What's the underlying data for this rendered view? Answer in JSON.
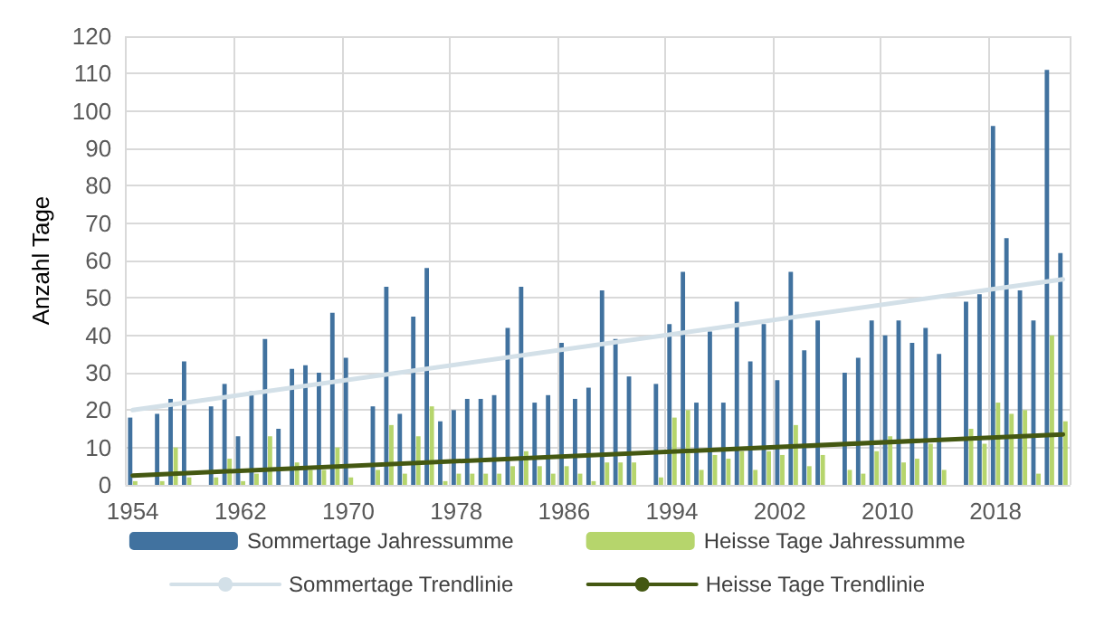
{
  "chart_data": {
    "type": "bar",
    "ylabel": "Anzahl Tage",
    "categories": [
      "1954",
      null,
      null,
      null,
      null,
      null,
      null,
      null,
      "1962",
      null,
      null,
      null,
      null,
      null,
      null,
      null,
      "1970",
      null,
      null,
      null,
      null,
      null,
      null,
      null,
      "1978",
      null,
      null,
      null,
      null,
      null,
      null,
      null,
      "1986",
      null,
      null,
      null,
      null,
      null,
      null,
      null,
      "1994",
      null,
      null,
      null,
      null,
      null,
      null,
      null,
      "2002",
      null,
      null,
      null,
      null,
      null,
      null,
      null,
      "2010",
      null,
      null,
      null,
      null,
      null,
      null,
      null,
      "2018",
      null,
      null,
      null,
      null,
      null
    ],
    "series": [
      {
        "name": "Sommertage Jahressumme",
        "color": "#41729f",
        "values": [
          18,
          null,
          19,
          23,
          33,
          null,
          21,
          27,
          13,
          25,
          39,
          15,
          31,
          32,
          30,
          46,
          34,
          null,
          21,
          53,
          19,
          45,
          58,
          17,
          20,
          23,
          23,
          24,
          42,
          53,
          22,
          24,
          38,
          23,
          26,
          52,
          39,
          29,
          null,
          27,
          43,
          57,
          22,
          41,
          22,
          49,
          33,
          43,
          28,
          57,
          36,
          44,
          null,
          30,
          34,
          44,
          40,
          44,
          38,
          42,
          35,
          null,
          49,
          51,
          96,
          66,
          52,
          44,
          111,
          62
        ]
      },
      {
        "name": "Heisse Tage Jahressumme",
        "color": "#b6d56c",
        "values": [
          1,
          null,
          1,
          10,
          2,
          null,
          2,
          7,
          1,
          3,
          13,
          0,
          6,
          4,
          4,
          10,
          2,
          null,
          4,
          16,
          3,
          13,
          21,
          1,
          3,
          3,
          3,
          3,
          5,
          9,
          5,
          3,
          5,
          3,
          1,
          6,
          6,
          6,
          null,
          2,
          18,
          20,
          4,
          8,
          7,
          9,
          4,
          9,
          8,
          16,
          5,
          8,
          null,
          4,
          3,
          9,
          13,
          6,
          7,
          11,
          4,
          null,
          15,
          11,
          22,
          19,
          20,
          3,
          40,
          17
        ]
      },
      {
        "name": "Sommertage Trendlinie",
        "type": "line",
        "color": "#d3e0e8",
        "values": [
          20,
          null,
          null,
          null,
          null,
          null,
          null,
          null,
          null,
          null,
          null,
          null,
          null,
          null,
          null,
          null,
          null,
          null,
          null,
          null,
          null,
          null,
          null,
          null,
          null,
          null,
          null,
          null,
          null,
          null,
          null,
          null,
          null,
          null,
          null,
          null,
          null,
          null,
          null,
          null,
          null,
          null,
          null,
          null,
          null,
          null,
          null,
          null,
          null,
          null,
          null,
          null,
          null,
          null,
          null,
          null,
          null,
          null,
          null,
          null,
          null,
          null,
          null,
          null,
          null,
          null,
          null,
          null,
          null,
          55
        ]
      },
      {
        "name": "Heisse Tage Trendlinie",
        "type": "line",
        "color": "#445812",
        "values": [
          2.5,
          null,
          null,
          null,
          null,
          null,
          null,
          null,
          null,
          null,
          null,
          null,
          null,
          null,
          null,
          null,
          null,
          null,
          null,
          null,
          null,
          null,
          null,
          null,
          null,
          null,
          null,
          null,
          null,
          null,
          null,
          null,
          null,
          null,
          null,
          null,
          null,
          null,
          null,
          null,
          null,
          null,
          null,
          null,
          null,
          null,
          null,
          null,
          null,
          null,
          null,
          null,
          null,
          null,
          null,
          null,
          null,
          null,
          null,
          null,
          null,
          null,
          null,
          null,
          null,
          null,
          null,
          null,
          null,
          13.5
        ]
      }
    ],
    "ylim": [
      0,
      120
    ],
    "yticks": [
      0,
      10,
      20,
      30,
      40,
      50,
      60,
      70,
      80,
      90,
      100,
      110,
      120
    ],
    "grid": true,
    "legend": "bottom",
    "marker": "none",
    "line_style": "solid"
  }
}
